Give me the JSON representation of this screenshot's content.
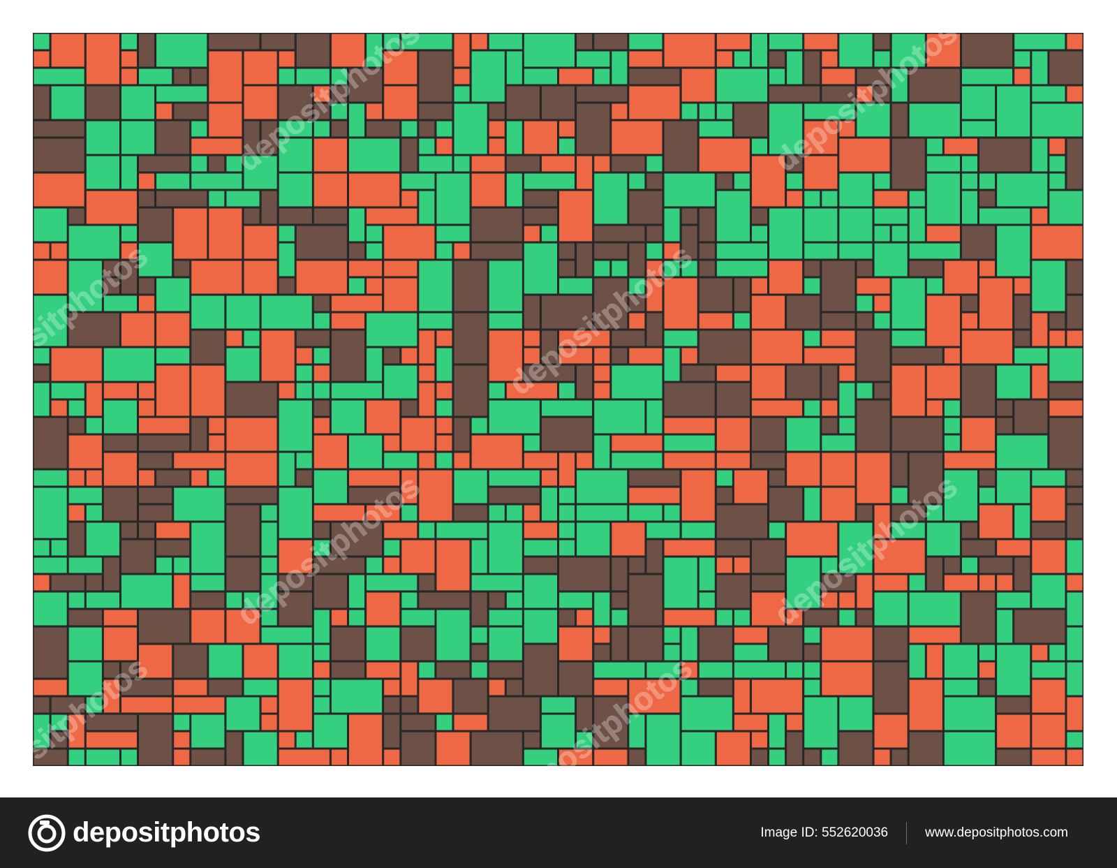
{
  "artwork": {
    "description_free": true,
    "colors": {
      "green": "#34d07f",
      "orange": "#ee6845",
      "brown": "#6d5146",
      "grout": "#2a2a2a",
      "background": "#ffffff"
    },
    "grid_columns": 60,
    "grid_rows": 42,
    "watermark_text": "depositphotos"
  },
  "footer": {
    "brand_name": "depositphotos",
    "image_id_label": "Image ID: 552620036",
    "website": "www.depositphotos.com",
    "background": "#212121"
  }
}
